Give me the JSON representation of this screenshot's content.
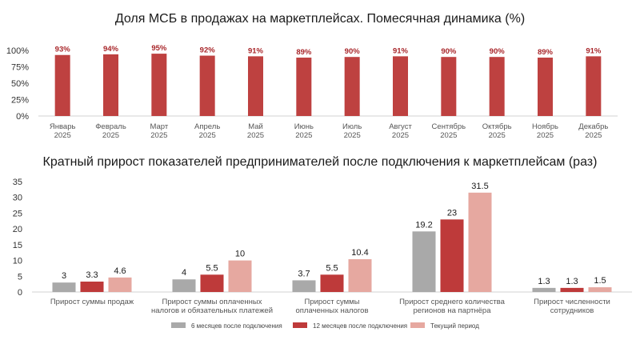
{
  "chart_data": [
    {
      "type": "bar",
      "title": "Доля МСБ в продажах на маркетплейсах. Помесячная динамика (%)",
      "categories": [
        [
          "Январь",
          "2025"
        ],
        [
          "Февраль",
          "2025"
        ],
        [
          "Март",
          "2025"
        ],
        [
          "Апрель",
          "2025"
        ],
        [
          "Май",
          "2025"
        ],
        [
          "Июнь",
          "2025"
        ],
        [
          "Июль",
          "2025"
        ],
        [
          "Август",
          "2025"
        ],
        [
          "Сентябрь",
          "2025"
        ],
        [
          "Октябрь",
          "2025"
        ],
        [
          "Ноябрь",
          "2025"
        ],
        [
          "Декабрь",
          "2025"
        ]
      ],
      "values": [
        93,
        94,
        95,
        92,
        91,
        89,
        90,
        91,
        90,
        90,
        89,
        91
      ],
      "data_labels": [
        "93%",
        "94%",
        "95%",
        "92%",
        "91%",
        "89%",
        "90%",
        "91%",
        "90%",
        "90%",
        "89%",
        "91%"
      ],
      "ylim": [
        0,
        100
      ],
      "yticks": [
        0,
        25,
        50,
        75,
        100
      ],
      "ytick_labels": [
        "0%",
        "25%",
        "50%",
        "75%",
        "100%"
      ],
      "grid": false,
      "colors": {
        "bar": "#be4140",
        "label": "#a8262a"
      }
    },
    {
      "type": "bar",
      "title": "Кратный прирост показателей предпринимателей после подключения к маркетплейсам (раз)",
      "categories": [
        [
          "Прирост суммы продаж"
        ],
        [
          "Прирост суммы оплаченных",
          "налогов и обязательных платежей"
        ],
        [
          "Прирост суммы",
          "оплаченных налогов"
        ],
        [
          "Прирост среднего количества",
          "регионов на партнёра"
        ],
        [
          "Прирост численности",
          "сотрудников"
        ]
      ],
      "series": [
        {
          "name": "6 месяцев после подключения",
          "values": [
            3,
            4,
            3.7,
            19.2,
            1.3
          ],
          "labels": [
            "3",
            "4",
            "3.7",
            "19.2",
            "1.3"
          ],
          "color": "#a9a9a9"
        },
        {
          "name": "12 месяцев после подключения",
          "values": [
            3.3,
            5.5,
            5.5,
            23,
            1.3
          ],
          "labels": [
            "3.3",
            "5.5",
            "5.5",
            "23",
            "1.3"
          ],
          "color": "#be3a3a"
        },
        {
          "name": "Текущий период",
          "values": [
            4.6,
            10,
            10.4,
            31.5,
            1.5
          ],
          "labels": [
            "4.6",
            "10",
            "10.4",
            "31.5",
            "1.5"
          ],
          "color": "#e6a8a0"
        }
      ],
      "ylim": [
        0,
        35
      ],
      "yticks": [
        0,
        5,
        10,
        15,
        20,
        25,
        30,
        35
      ],
      "ytick_labels": [
        "0",
        "5",
        "10",
        "15",
        "20",
        "25",
        "30",
        "35"
      ],
      "grid": false,
      "legend_position": "bottom"
    }
  ]
}
